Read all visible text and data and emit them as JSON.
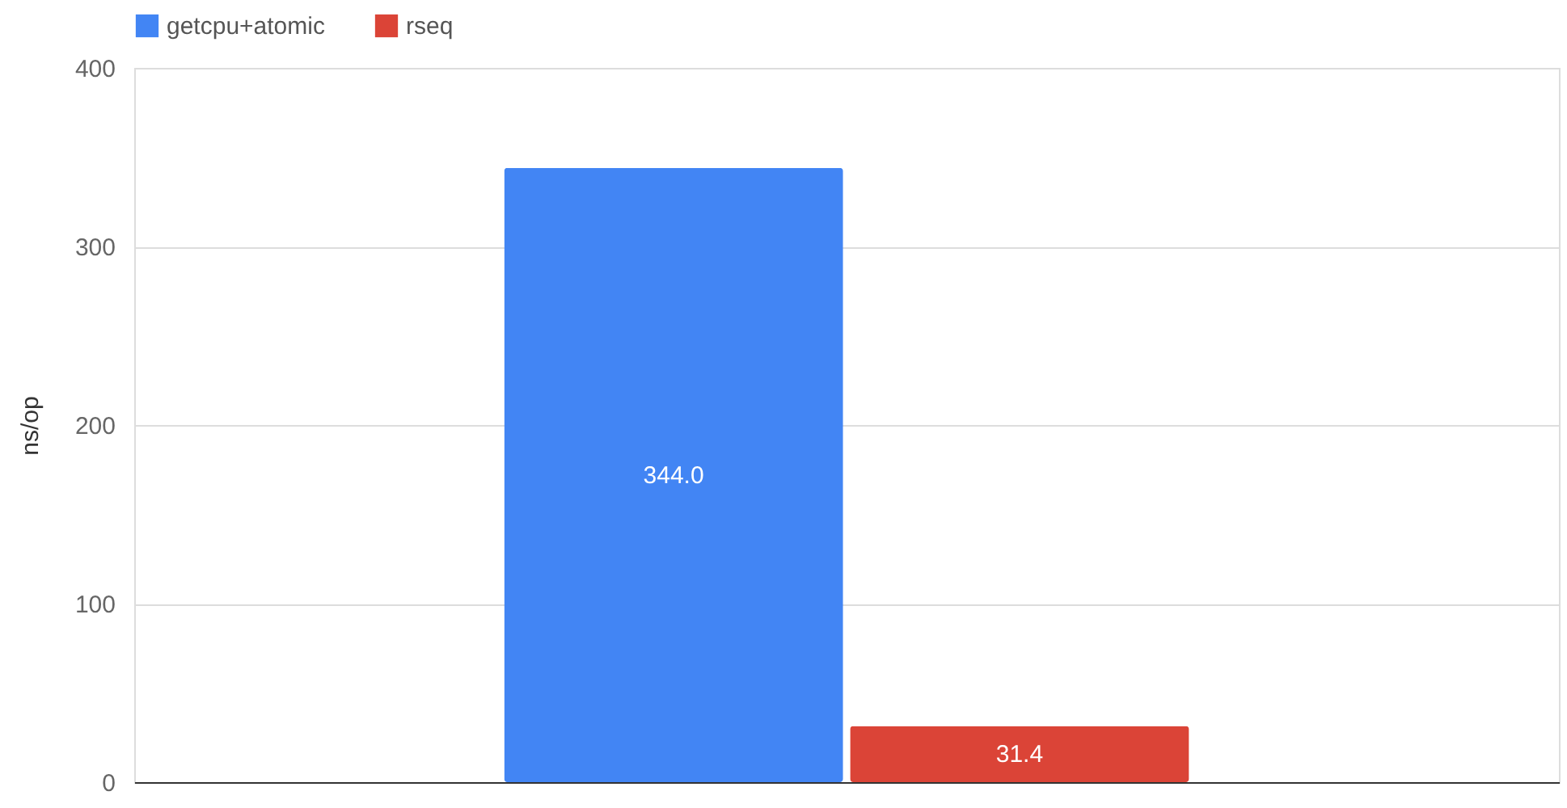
{
  "chart_data": {
    "type": "bar",
    "ylabel": "ns/op",
    "categories": [
      null
    ],
    "series": [
      {
        "name": "getcpu+atomic",
        "color": "#4285f4",
        "values": [
          344.0
        ],
        "value_labels": [
          "344.0"
        ]
      },
      {
        "name": "rseq",
        "color": "#db4437",
        "values": [
          31.4
        ],
        "value_labels": [
          "31.4"
        ]
      }
    ],
    "ylim": [
      0,
      400
    ],
    "yticks": [
      0,
      100,
      200,
      300,
      400
    ],
    "grid": "y",
    "legend": "top"
  }
}
